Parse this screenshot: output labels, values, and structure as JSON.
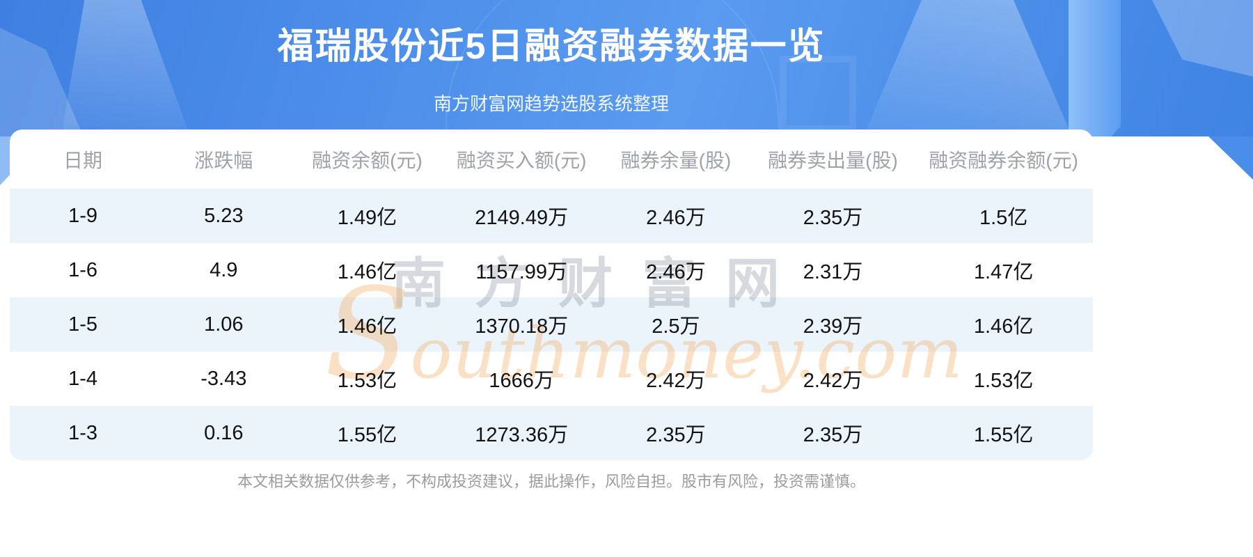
{
  "banner": {
    "title": "福瑞股份近5日融资融券数据一览",
    "subtitle": "南方财富网趋势选股系统整理"
  },
  "chart_data": {
    "type": "table",
    "title": "福瑞股份近5日融资融券数据一览",
    "subtitle": "南方财富网趋势选股系统整理",
    "columns": [
      "日期",
      "涨跌幅",
      "融资余额(元)",
      "融资买入额(元)",
      "融券余量(股)",
      "融券卖出量(股)",
      "融资融券余额(元)"
    ],
    "rows": [
      [
        "1-9",
        "5.23",
        "1.49亿",
        "2149.49万",
        "2.46万",
        "2.35万",
        "1.5亿"
      ],
      [
        "1-6",
        "4.9",
        "1.46亿",
        "1157.99万",
        "2.46万",
        "2.31万",
        "1.47亿"
      ],
      [
        "1-5",
        "1.06",
        "1.46亿",
        "1370.18万",
        "2.5万",
        "2.39万",
        "1.46亿"
      ],
      [
        "1-4",
        "-3.43",
        "1.53亿",
        "1666万",
        "2.42万",
        "2.42万",
        "1.53亿"
      ],
      [
        "1-3",
        "0.16",
        "1.55亿",
        "1273.36万",
        "2.35万",
        "2.35万",
        "1.55亿"
      ]
    ],
    "layout_hints": {
      "striped_rows": "odd",
      "stripe_color": "#EBF3FB",
      "all_cells_centered": true
    }
  },
  "watermark": {
    "cn": "南方财富网",
    "en": "Southmoney.com"
  },
  "footer": {
    "disclaimer": "本文相关数据仅供参考，不构成投资建议，据此操作，风险自担。股市有风险，投资需谨慎。"
  },
  "colors": {
    "banner_blue": "#4C8EE9",
    "stripe": "#EBF3FB",
    "header_text": "#9DA2AB",
    "body_text": "#121212",
    "footer_text": "#9B9B9B",
    "watermark_orange": "#F2B874",
    "watermark_grey": "#949EA8"
  }
}
